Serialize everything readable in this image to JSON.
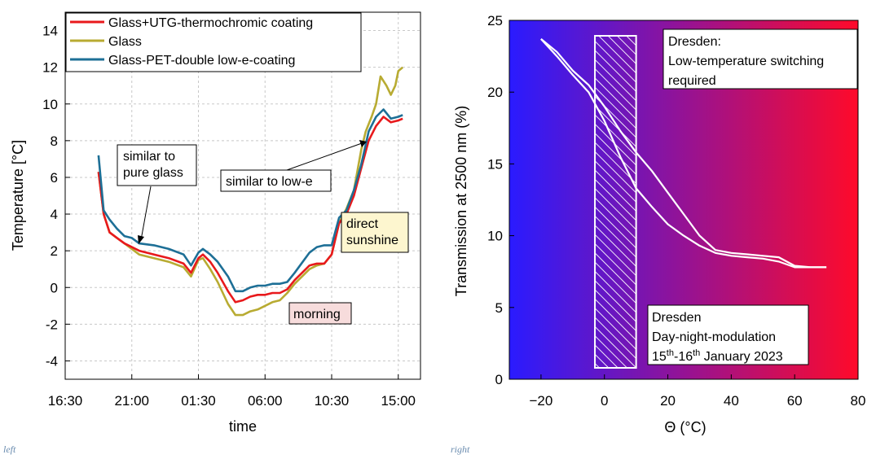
{
  "captions": {
    "left": "left",
    "right": "right"
  },
  "chart_data": [
    {
      "type": "line",
      "title": "",
      "xlabel": "time",
      "ylabel": "Temperature [°C]",
      "x_unit": "hours elapsed since 16:30",
      "xlim": [
        0,
        24
      ],
      "ylim": [
        -5,
        15
      ],
      "x_ticks": [
        {
          "x": 0,
          "label": "16:30"
        },
        {
          "x": 4.5,
          "label": "21:00"
        },
        {
          "x": 9,
          "label": "01:30"
        },
        {
          "x": 13.5,
          "label": "06:00"
        },
        {
          "x": 18,
          "label": "10:30"
        },
        {
          "x": 22.5,
          "label": "15:00"
        }
      ],
      "y_ticks": [
        -4,
        -2,
        0,
        2,
        4,
        6,
        8,
        10,
        12,
        14
      ],
      "grid": true,
      "legend_position": "top-left",
      "series": [
        {
          "name": "Glass+UTG-thermochromic coating",
          "color": "#e8191c",
          "x": [
            2.25,
            2.6,
            3.0,
            3.5,
            4.0,
            4.5,
            5.0,
            6.0,
            7.0,
            8.0,
            8.5,
            9.0,
            9.3,
            9.8,
            10.3,
            11.0,
            11.5,
            12.0,
            12.5,
            13.0,
            13.5,
            14.0,
            14.5,
            15.0,
            15.5,
            16.5,
            17.0,
            17.5,
            18.0,
            18.5,
            19.0,
            19.5,
            20.0,
            20.5,
            21.0,
            21.5,
            22.0,
            22.5,
            22.8
          ],
          "y": [
            6.3,
            4.0,
            3.0,
            2.7,
            2.4,
            2.2,
            2.0,
            1.8,
            1.6,
            1.3,
            0.8,
            1.6,
            1.8,
            1.4,
            0.8,
            -0.2,
            -0.8,
            -0.7,
            -0.5,
            -0.4,
            -0.4,
            -0.3,
            -0.3,
            -0.1,
            0.4,
            1.2,
            1.3,
            1.3,
            1.8,
            3.5,
            4.0,
            5.0,
            6.5,
            8.0,
            8.8,
            9.3,
            9.0,
            9.1,
            9.2
          ]
        },
        {
          "name": "Glass",
          "color": "#b8ab32",
          "x": [
            2.25,
            2.6,
            3.0,
            3.5,
            4.0,
            4.5,
            5.0,
            6.0,
            7.0,
            8.0,
            8.5,
            9.0,
            9.3,
            9.8,
            10.3,
            11.0,
            11.5,
            12.0,
            12.5,
            13.0,
            13.5,
            14.0,
            14.5,
            15.0,
            15.5,
            16.5,
            17.0,
            17.5,
            18.0,
            18.5,
            19.0,
            19.5,
            20.0,
            20.3,
            20.7,
            21.0,
            21.3,
            21.7,
            22.0,
            22.3,
            22.5,
            22.8
          ],
          "y": [
            6.3,
            4.0,
            3.0,
            2.7,
            2.4,
            2.1,
            1.8,
            1.6,
            1.4,
            1.1,
            0.6,
            1.5,
            1.6,
            1.0,
            0.3,
            -0.9,
            -1.5,
            -1.5,
            -1.3,
            -1.2,
            -1.0,
            -0.8,
            -0.7,
            -0.3,
            0.2,
            1.0,
            1.2,
            1.3,
            1.8,
            3.5,
            4.3,
            5.3,
            7.5,
            8.5,
            9.3,
            10.0,
            11.5,
            11.0,
            10.5,
            11.0,
            11.8,
            12.0
          ]
        },
        {
          "name": "Glass-PET-double low-e-coating",
          "color": "#1d6f96",
          "x": [
            2.25,
            2.6,
            3.0,
            3.5,
            4.0,
            4.5,
            5.0,
            6.0,
            7.0,
            8.0,
            8.5,
            9.0,
            9.3,
            9.8,
            10.3,
            11.0,
            11.5,
            12.0,
            12.5,
            13.0,
            13.5,
            14.0,
            14.5,
            15.0,
            15.5,
            16.5,
            17.0,
            17.5,
            18.0,
            18.5,
            19.0,
            19.5,
            20.0,
            20.5,
            21.0,
            21.5,
            22.0,
            22.5,
            22.8
          ],
          "y": [
            7.2,
            4.2,
            3.7,
            3.2,
            2.8,
            2.7,
            2.4,
            2.3,
            2.1,
            1.8,
            1.2,
            1.9,
            2.1,
            1.8,
            1.4,
            0.6,
            -0.2,
            -0.2,
            0.0,
            0.1,
            0.1,
            0.2,
            0.2,
            0.3,
            0.8,
            1.9,
            2.2,
            2.3,
            2.3,
            3.8,
            4.2,
            5.3,
            6.7,
            8.5,
            9.3,
            9.7,
            9.2,
            9.3,
            9.4
          ]
        }
      ],
      "annotations": [
        {
          "text": "similar to\npure glass",
          "box": "#ffffff"
        },
        {
          "text": "similar to low-e",
          "box": "#ffffff"
        },
        {
          "text": "direct\nsunshine",
          "box": "#fdf6cf"
        },
        {
          "text": "morning",
          "box": "#f7dcdc"
        }
      ]
    },
    {
      "type": "line",
      "title": "",
      "xlabel": "Θ (°C)",
      "ylabel": "Transmission at 2500 nm (%)",
      "xlim": [
        -30,
        80
      ],
      "ylim": [
        0,
        25
      ],
      "x_ticks": [
        -20,
        0,
        20,
        40,
        60,
        80
      ],
      "y_ticks": [
        0,
        5,
        10,
        15,
        20,
        25
      ],
      "grid": false,
      "background_gradient": [
        "#2a1bff",
        "#ff0a2a"
      ],
      "series": [
        {
          "color": "#ffffff",
          "x": [
            -20,
            -15,
            -10,
            -5,
            0,
            5,
            10,
            15,
            20,
            25,
            30,
            35,
            40,
            45,
            50,
            55,
            60,
            65,
            70
          ],
          "y": [
            23.7,
            22.5,
            21.2,
            20.0,
            18.0,
            15.5,
            13.3,
            12.0,
            10.8,
            10.0,
            9.3,
            8.8,
            8.6,
            8.5,
            8.4,
            8.2,
            7.8,
            7.8,
            7.8
          ]
        },
        {
          "color": "#ffffff",
          "x": [
            -20,
            -15,
            -10,
            -5,
            0,
            5,
            10,
            15,
            20,
            25,
            30,
            35,
            40,
            45,
            50,
            55,
            60,
            65,
            70
          ],
          "y": [
            23.7,
            22.8,
            21.5,
            20.5,
            19.0,
            17.3,
            15.8,
            14.5,
            13.0,
            11.5,
            10.0,
            9.0,
            8.8,
            8.7,
            8.6,
            8.5,
            7.9,
            7.8,
            7.8
          ]
        }
      ],
      "hatched_band": {
        "x_from": -3,
        "x_to": 10
      },
      "annotations": [
        {
          "text": "Dresden:\nLow-temperature switching\nrequired"
        },
        {
          "text": "Dresden\nDay-night-modulation",
          "line3_base": "15",
          "line3_sup1": "th",
          "line3_mid": "-16",
          "line3_sup2": "th",
          "line3_tail": " January 2023"
        }
      ]
    }
  ]
}
